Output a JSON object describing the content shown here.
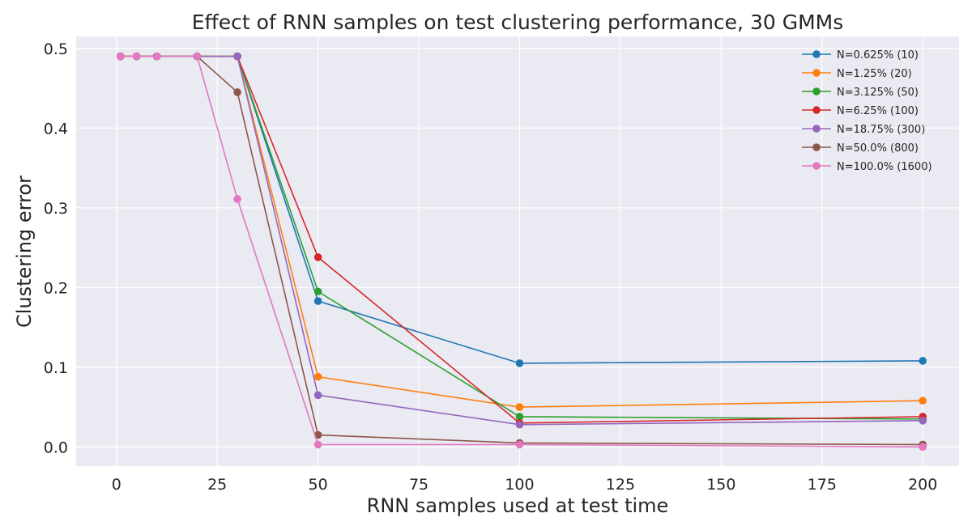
{
  "chart_data": {
    "type": "line",
    "title": "Effect of RNN samples on test clustering performance, 30 GMMs",
    "xlabel": "RNN samples used at test time",
    "ylabel": "Clustering error",
    "xlim": [
      -10,
      209
    ],
    "ylim": [
      -0.024,
      0.515
    ],
    "xticks": [
      0,
      25,
      50,
      75,
      100,
      125,
      150,
      175,
      200
    ],
    "xtick_labels": [
      "0",
      "25",
      "50",
      "75",
      "100",
      "125",
      "150",
      "175",
      "200"
    ],
    "yticks": [
      0.0,
      0.1,
      0.2,
      0.3,
      0.4,
      0.5
    ],
    "ytick_labels": [
      "0.0",
      "0.1",
      "0.2",
      "0.3",
      "0.4",
      "0.5"
    ],
    "grid": true,
    "legend_position": "top-right",
    "x": [
      1,
      5,
      10,
      20,
      30,
      50,
      100,
      200
    ],
    "series": [
      {
        "name": "N=0.625% (10)",
        "color": "#1f77b4",
        "values": [
          0.49,
          0.49,
          0.49,
          0.49,
          0.49,
          0.183,
          0.105,
          0.108
        ]
      },
      {
        "name": "N=1.25% (20)",
        "color": "#ff7f0e",
        "values": [
          0.49,
          0.49,
          0.49,
          0.49,
          0.49,
          0.088,
          0.05,
          0.058
        ]
      },
      {
        "name": "N=3.125% (50)",
        "color": "#2ca02c",
        "values": [
          0.49,
          0.49,
          0.49,
          0.49,
          0.49,
          0.195,
          0.038,
          0.035
        ]
      },
      {
        "name": "N=6.25% (100)",
        "color": "#d62728",
        "values": [
          0.49,
          0.49,
          0.49,
          0.49,
          0.49,
          0.238,
          0.03,
          0.038
        ]
      },
      {
        "name": "N=18.75% (300)",
        "color": "#9467bd",
        "values": [
          0.49,
          0.49,
          0.49,
          0.49,
          0.49,
          0.065,
          0.028,
          0.033
        ]
      },
      {
        "name": "N=50.0% (800)",
        "color": "#8c564b",
        "values": [
          0.49,
          0.49,
          0.49,
          0.49,
          0.445,
          0.015,
          0.005,
          0.003
        ]
      },
      {
        "name": "N=100.0% (1600)",
        "color": "#e377c2",
        "values": [
          0.49,
          0.49,
          0.49,
          0.49,
          0.311,
          0.003,
          0.003,
          0.0
        ]
      }
    ]
  },
  "colors": {
    "plot_background": "#eaeaf2",
    "grid": "#ffffff",
    "text": "#262626"
  }
}
